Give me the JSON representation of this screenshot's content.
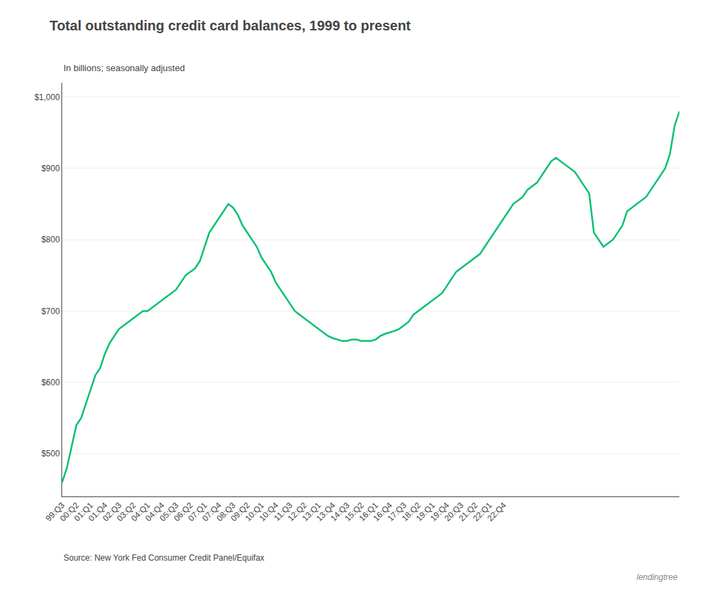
{
  "chart_data": {
    "type": "line",
    "title": "Total outstanding credit card balances, 1999 to present",
    "subtitle": "In billions; seasonally adjusted",
    "annotations": [
      "Source: New York Fed Consumer Credit Panel/Equifax",
      "lendingtree"
    ],
    "color": "#00c170",
    "grid": true,
    "ylim": [
      440,
      1020
    ],
    "yticks": [
      {
        "value": 500,
        "label": "$500"
      },
      {
        "value": 600,
        "label": "$600"
      },
      {
        "value": 700,
        "label": "$700"
      },
      {
        "value": 800,
        "label": "$800"
      },
      {
        "value": 900,
        "label": "$900"
      },
      {
        "value": 1000,
        "label": "$1,000"
      }
    ],
    "categories": [
      "99:Q3",
      null,
      null,
      "00:Q2",
      null,
      null,
      "01:Q1",
      null,
      null,
      "01:Q4",
      null,
      null,
      "02:Q3",
      null,
      null,
      "03:Q2",
      null,
      null,
      "04:Q1",
      null,
      null,
      "04:Q4",
      null,
      null,
      "05:Q3",
      null,
      null,
      "06:Q2",
      null,
      null,
      "07:Q1",
      null,
      null,
      "07:Q4",
      null,
      null,
      "08:Q3",
      null,
      null,
      "09:Q2",
      null,
      null,
      "10:Q1",
      null,
      null,
      "10:Q4",
      null,
      null,
      "11:Q3",
      null,
      null,
      "12:Q2",
      null,
      null,
      "13:Q1",
      null,
      null,
      "13:Q4",
      null,
      null,
      "14:Q3",
      null,
      null,
      "15:Q2",
      null,
      null,
      "16:Q1",
      null,
      null,
      "16:Q4",
      null,
      null,
      "17:Q3",
      null,
      null,
      "18:Q2",
      null,
      null,
      "19:Q1",
      null,
      null,
      "19:Q4",
      null,
      null,
      "20:Q3",
      null,
      null,
      "21:Q2",
      null,
      null,
      "22:Q1",
      null,
      null,
      "22:Q4",
      null,
      null,
      null,
      null,
      null,
      null,
      null,
      null,
      null,
      null,
      null,
      null,
      null,
      null,
      null,
      null,
      null,
      null,
      null,
      null,
      null,
      null,
      null,
      null,
      null,
      null,
      null,
      null,
      null,
      null,
      null,
      null,
      null,
      null,
      null,
      null,
      null
    ],
    "values": [
      460,
      480,
      510,
      540,
      550,
      570,
      590,
      610,
      620,
      640,
      655,
      665,
      675,
      680,
      685,
      690,
      695,
      700,
      700,
      705,
      710,
      715,
      720,
      725,
      730,
      740,
      750,
      755,
      760,
      770,
      790,
      810,
      820,
      830,
      840,
      850,
      845,
      835,
      820,
      810,
      800,
      790,
      775,
      765,
      755,
      740,
      730,
      720,
      710,
      700,
      695,
      690,
      685,
      680,
      675,
      670,
      665,
      662,
      660,
      658,
      658,
      660,
      660,
      658,
      658,
      658,
      660,
      665,
      668,
      670,
      672,
      675,
      680,
      685,
      695,
      700,
      705,
      710,
      715,
      720,
      725,
      735,
      745,
      755,
      760,
      765,
      770,
      775,
      780,
      790,
      800,
      810,
      820,
      830,
      840,
      850,
      855,
      860,
      870,
      875,
      880,
      890,
      900,
      910,
      915,
      910,
      905,
      900,
      895,
      885,
      875,
      865,
      810,
      800,
      790,
      795,
      800,
      810,
      820,
      840,
      845,
      850,
      855,
      860,
      870,
      880,
      890,
      900,
      920,
      960,
      980
    ]
  }
}
